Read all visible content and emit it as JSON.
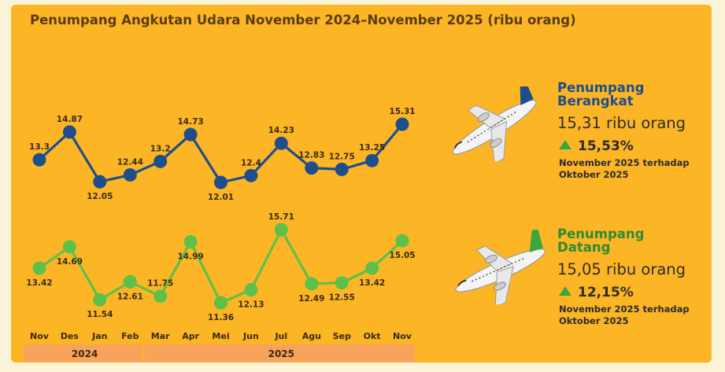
{
  "title": "Penumpang Angkutan Udara November 2024–November 2025 (ribu orang)",
  "chart_data": {
    "type": "line",
    "title": "Penumpang Angkutan Udara November 2024–November 2025 (ribu orang)",
    "categories": [
      "Nov",
      "Des",
      "Jan",
      "Feb",
      "Mar",
      "Apr",
      "Mei",
      "Jun",
      "Jul",
      "Agu",
      "Sep",
      "Okt",
      "Nov"
    ],
    "year_groups": [
      {
        "label": "2024",
        "from": 0,
        "to": 3
      },
      {
        "label": "2025",
        "from": 4,
        "to": 12
      }
    ],
    "series": [
      {
        "name": "Penumpang Berangkat",
        "color": "#1f4e8c",
        "values": [
          13.3,
          14.87,
          12.05,
          12.44,
          13.2,
          14.73,
          12.01,
          12.4,
          14.23,
          12.83,
          12.75,
          13.25,
          15.31
        ],
        "labels": [
          "13.3",
          "14.87",
          "12.05",
          "12.44",
          "13.2",
          "14.73",
          "12.01",
          "12.4",
          "14.23",
          "12.83",
          "12.75",
          "13.25",
          "15.31"
        ]
      },
      {
        "name": "Penumpang Datang",
        "color": "#5dc04a",
        "values": [
          13.42,
          14.69,
          11.54,
          12.61,
          11.75,
          14.99,
          11.36,
          12.13,
          15.71,
          12.49,
          12.55,
          13.42,
          15.05
        ],
        "labels": [
          "13.42",
          "14.69",
          "11.54",
          "12.61",
          "11.75",
          "14.99",
          "11.36",
          "12.13",
          "15.71",
          "12.49",
          "12.55",
          "13.42",
          "15.05"
        ]
      }
    ]
  },
  "summary": {
    "departure": {
      "title_line1": "Penumpang",
      "title_line2": "Berangkat",
      "value": "15,31 ribu orang",
      "change": "15,53%",
      "note_line1": "November 2025 terhadap",
      "note_line2": "Oktober 2025",
      "title_color": "#1f4e8c",
      "tail_color": "#1f4e8c",
      "icon": "airplane-icon"
    },
    "arrival": {
      "title_line1": "Penumpang",
      "title_line2": "Datang",
      "value": "15,05 ribu orang",
      "change": "12,15%",
      "note_line1": "November 2025 terhadap",
      "note_line2": "Oktober 2025",
      "title_color": "#2e8b2e",
      "tail_color": "#3aa63c",
      "icon": "airplane-icon"
    }
  },
  "colors": {
    "background": "#fcb525",
    "year_bar": "#f7a35c",
    "title": "#5a3b12",
    "up_arrow": "#3aa63c"
  }
}
